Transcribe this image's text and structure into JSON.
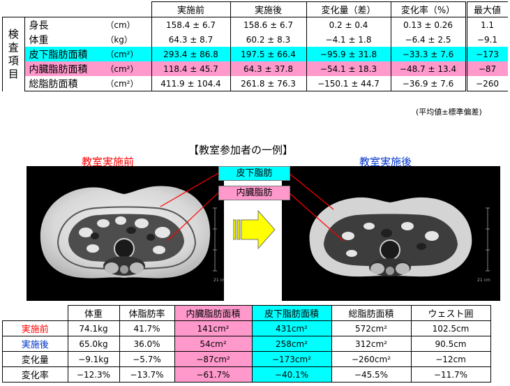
{
  "top_table": {
    "side_label": [
      "検",
      "査",
      "項",
      "目"
    ],
    "headers": [
      "実施前",
      "実施後",
      "変化量（差）",
      "変化率（%）",
      "最大値"
    ],
    "rows": [
      {
        "item": "身長",
        "unit": "（cm）",
        "values": [
          "158.4 ± 6.7",
          "158.6 ± 6.7",
          "0.2 ± 0.4",
          "0.13 ± 0.26",
          "1.1"
        ]
      },
      {
        "item": "体重",
        "unit": "（kg）",
        "values": [
          "64.3 ± 8.7",
          "60.2 ± 8.3",
          "−4.1 ± 1.8",
          "−6.4 ± 2.5",
          "−9.1"
        ]
      },
      {
        "item": "皮下脂肪面積",
        "unit": "（cm²）",
        "values": [
          "293.4 ± 86.8",
          "197.5 ± 66.4",
          "−95.9 ± 31.8",
          "−33.3 ± 7.6",
          "−173"
        ]
      },
      {
        "item": "内臓脂肪面積",
        "unit": "（cm²）",
        "values": [
          "118.4 ± 45.7",
          "64.3 ± 37.8",
          "−54.1 ± 18.3",
          "−48.7 ± 13.4",
          "−87"
        ]
      },
      {
        "item": "総脂肪面積",
        "unit": "（cm²）",
        "values": [
          "411.9 ± 104.4",
          "261.8 ± 76.3",
          "−150.1 ± 44.7",
          "−36.9 ± 7.6",
          "−260"
        ]
      }
    ],
    "footnote": "(平均値±標準偏差)"
  },
  "example": {
    "title": "【教室参加者の一例】",
    "before_caption": "教室実施前",
    "after_caption": "教室実施後",
    "tag_subcutaneous": "皮下脂肪",
    "tag_visceral": "内臓脂肪",
    "scale_label": "21 cm"
  },
  "bottom_table": {
    "headers": [
      "体重",
      "体脂肪率",
      "内臓脂肪面積",
      "皮下脂肪面積",
      "総脂肪面積",
      "ウェスト囲"
    ],
    "rows": [
      {
        "label": "実施前",
        "values": [
          "74.1kg",
          "41.7%",
          "141cm²",
          "431cm²",
          "572cm²",
          "102.5cm"
        ]
      },
      {
        "label": "実施後",
        "values": [
          "65.0kg",
          "36.0%",
          "54cm²",
          "258cm²",
          "312cm²",
          "90.5cm"
        ]
      },
      {
        "label": "変化量",
        "values": [
          "−9.1kg",
          "−5.7%",
          "−87cm²",
          "−173cm²",
          "−260cm²",
          "−12cm"
        ]
      },
      {
        "label": "変化率",
        "values": [
          "−12.3%",
          "−13.7%",
          "−61.7%",
          "−40.1%",
          "−45.5%",
          "−11.7%"
        ]
      }
    ]
  },
  "colors": {
    "subcutaneous": "#00ffff",
    "visceral": "#ff99cc",
    "before": "#ff0000",
    "after": "#0033cc",
    "arrow": "#ffff00"
  }
}
